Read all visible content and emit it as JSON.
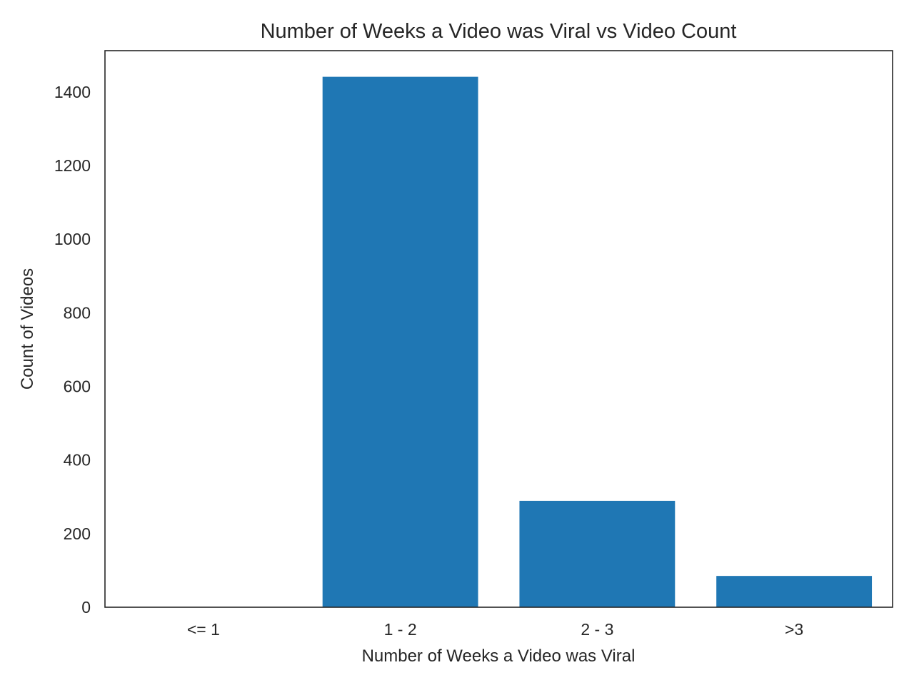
{
  "chart_data": {
    "type": "bar",
    "title": "Number of Weeks a Video was Viral vs Video Count",
    "xlabel": "Number of Weeks a Video was Viral",
    "ylabel": "Count of Videos",
    "categories": [
      "<= 1",
      "1 - 2",
      "2 - 3",
      ">3"
    ],
    "values": [
      0,
      1441,
      289,
      85
    ],
    "ylim": [
      0,
      1512
    ],
    "yticks": [
      0,
      200,
      400,
      600,
      800,
      1000,
      1200,
      1400
    ],
    "grid": false,
    "legend": "none",
    "bar_color": "#1f77b4",
    "axis_color": "#262626",
    "text_color": "#262626"
  }
}
